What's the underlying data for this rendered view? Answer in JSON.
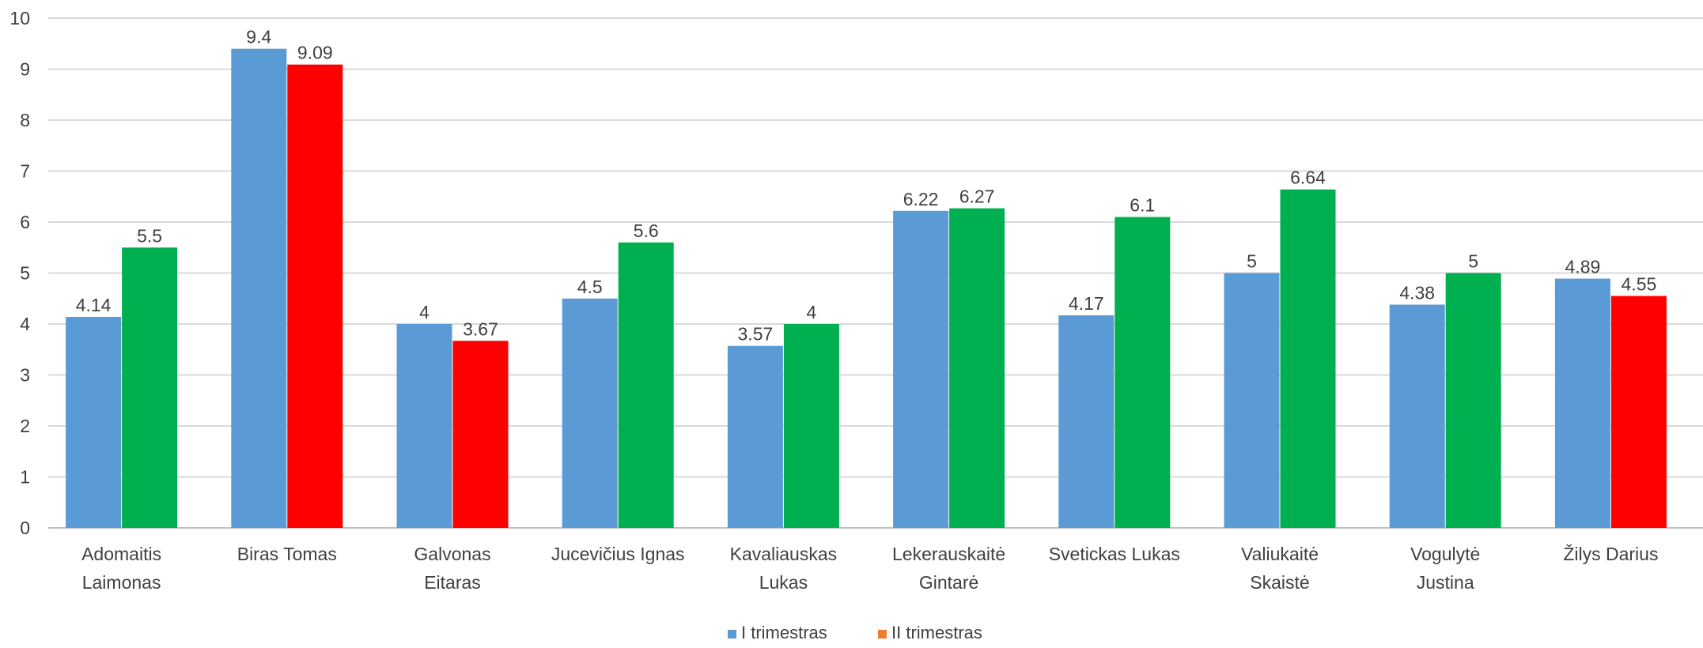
{
  "chart_data": {
    "type": "bar",
    "categories": [
      [
        "Adomaitis",
        "Laimonas"
      ],
      [
        "Biras Tomas"
      ],
      [
        "Galvonas",
        "Eitaras"
      ],
      [
        "Jucevičius Ignas"
      ],
      [
        "Kavaliauskas",
        "Lukas"
      ],
      [
        "Lekerauskaitė",
        "Gintarė"
      ],
      [
        "Svetickas Lukas"
      ],
      [
        "Valiukaitė",
        "Skaistė"
      ],
      [
        "Vogulytė",
        "Justina"
      ],
      [
        "Žilys Darius"
      ]
    ],
    "series": [
      {
        "name": "I trimestras",
        "values": [
          4.14,
          9.4,
          4,
          4.5,
          3.57,
          6.22,
          4.17,
          5,
          4.38,
          4.89
        ],
        "labels": [
          "4.14",
          "9.4",
          "4",
          "4.5",
          "3.57",
          "6.22",
          "4.17",
          "5",
          "4.38",
          "4.89"
        ]
      },
      {
        "name": "II trimestras",
        "values": [
          5.5,
          9.09,
          3.67,
          5.6,
          4,
          6.27,
          6.1,
          6.64,
          5,
          4.55
        ],
        "labels": [
          "5.5",
          "9.09",
          "3.67",
          "5.6",
          "4",
          "6.27",
          "6.1",
          "6.64",
          "5",
          "4.55"
        ]
      }
    ],
    "ylim": [
      0,
      10
    ],
    "yticks": [
      "0",
      "1",
      "2",
      "3",
      "4",
      "5",
      "6",
      "7",
      "8",
      "9",
      "10"
    ],
    "grid": true,
    "legend_position": "bottom",
    "colors": {
      "series1": "#5b9bd5",
      "series2_legend": "#ed7d31",
      "series2_above_series1": "#00b050",
      "series2_below_series1": "#ff0000",
      "gridline": "#d9d9d9",
      "axis": "#bfbfbf",
      "text": "#404040"
    }
  }
}
